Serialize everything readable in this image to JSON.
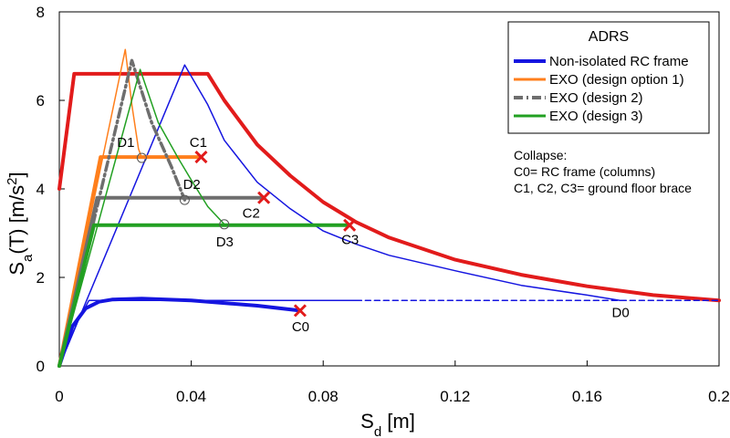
{
  "chart_data": {
    "type": "line",
    "ylabel_main": "S",
    "ylabel_sub": "a",
    "ylabel_rest": "(T)  [m/s",
    "ylabel_sup": "2",
    "ylabel_close": "]",
    "xlabel_main": "S",
    "xlabel_sub": "d",
    "xlabel_rest": " [m]",
    "xlim": [
      0,
      0.2
    ],
    "ylim": [
      0,
      8
    ],
    "xticks": [
      {
        "value": 0,
        "label": "0"
      },
      {
        "value": 0.04,
        "label": "0.04"
      },
      {
        "value": 0.08,
        "label": "0.08"
      },
      {
        "value": 0.12,
        "label": "0.12"
      },
      {
        "value": 0.16,
        "label": "0.16"
      },
      {
        "value": 0.2,
        "label": "0.2"
      }
    ],
    "yticks": [
      {
        "value": 0,
        "label": "0"
      },
      {
        "value": 2,
        "label": "2"
      },
      {
        "value": 4,
        "label": "4"
      },
      {
        "value": 6,
        "label": "6"
      },
      {
        "value": 8,
        "label": "8"
      }
    ],
    "grid": false,
    "legend": {
      "title": "ADRS",
      "placement": "top-right",
      "entries": [
        {
          "label": "Non-isolated RC frame",
          "color": "#1515e0",
          "dash": "solid",
          "width": 4
        },
        {
          "label": "EXO (design option 1)",
          "color": "#ff7f1c",
          "dash": "solid",
          "width": 3
        },
        {
          "label": "EXO (design 2)",
          "color": "#6e6e6e",
          "dash": "dashdot",
          "width": 4
        },
        {
          "label": "EXO (design 3)",
          "color": "#22a022",
          "dash": "solid",
          "width": 3
        }
      ]
    },
    "series": [
      {
        "id": "adrs-spectrum",
        "color": "#e21b1b",
        "width": 4,
        "dash": "solid",
        "points": [
          [
            0,
            4.0
          ],
          [
            0.0045,
            6.6
          ],
          [
            0.045,
            6.6
          ],
          [
            0.05,
            6.0
          ],
          [
            0.06,
            5.0
          ],
          [
            0.07,
            4.3
          ],
          [
            0.08,
            3.7
          ],
          [
            0.09,
            3.25
          ],
          [
            0.1,
            2.9
          ],
          [
            0.12,
            2.4
          ],
          [
            0.14,
            2.06
          ],
          [
            0.16,
            1.8
          ],
          [
            0.18,
            1.6
          ],
          [
            0.2,
            1.48
          ]
        ]
      },
      {
        "id": "demand-spectrum-rc",
        "color": "#1515e0",
        "width": 1.5,
        "dash": "solid",
        "points": [
          [
            0,
            0
          ],
          [
            0.038,
            6.8
          ],
          [
            0.045,
            5.9
          ],
          [
            0.05,
            5.1
          ],
          [
            0.06,
            4.15
          ],
          [
            0.07,
            3.55
          ],
          [
            0.08,
            3.05
          ],
          [
            0.09,
            2.75
          ],
          [
            0.1,
            2.5
          ],
          [
            0.12,
            2.15
          ],
          [
            0.14,
            1.82
          ],
          [
            0.16,
            1.6
          ],
          [
            0.17,
            1.48
          ]
        ]
      },
      {
        "id": "rc-capacity",
        "color": "#1515e0",
        "width": 4,
        "dash": "solid",
        "points": [
          [
            0,
            0
          ],
          [
            0.004,
            0.9
          ],
          [
            0.008,
            1.3
          ],
          [
            0.012,
            1.45
          ],
          [
            0.016,
            1.5
          ],
          [
            0.025,
            1.52
          ],
          [
            0.04,
            1.48
          ],
          [
            0.05,
            1.42
          ],
          [
            0.06,
            1.36
          ],
          [
            0.073,
            1.25
          ]
        ]
      },
      {
        "id": "rc-bilinear",
        "color": "#1515e0",
        "width": 1.5,
        "dash": "solid",
        "points": [
          [
            0,
            0
          ],
          [
            0.0055,
            1.0
          ],
          [
            0.009,
            1.48
          ],
          [
            0.09,
            1.48
          ]
        ]
      },
      {
        "id": "rc-bilinear-ext",
        "color": "#1515e0",
        "width": 1.5,
        "dash": "dashed",
        "points": [
          [
            0.09,
            1.48
          ],
          [
            0.2,
            1.48
          ]
        ]
      },
      {
        "id": "exo1-demand",
        "color": "#ff7f1c",
        "width": 1.5,
        "dash": "solid",
        "points": [
          [
            0,
            0
          ],
          [
            0.02,
            7.15
          ],
          [
            0.022,
            5.9
          ],
          [
            0.024,
            4.9
          ],
          [
            0.025,
            4.7
          ]
        ]
      },
      {
        "id": "exo1-capacity",
        "color": "#ff7f1c",
        "width": 4,
        "dash": "solid",
        "points": [
          [
            0,
            0
          ],
          [
            0.0125,
            4.72
          ],
          [
            0.043,
            4.72
          ]
        ]
      },
      {
        "id": "exo2-demand",
        "color": "#6e6e6e",
        "width": 3.5,
        "dash": "dashdot",
        "points": [
          [
            0,
            0
          ],
          [
            0.022,
            6.9
          ],
          [
            0.028,
            5.5
          ],
          [
            0.034,
            4.5
          ],
          [
            0.038,
            3.75
          ]
        ]
      },
      {
        "id": "exo2-capacity",
        "color": "#6e6e6e",
        "width": 4,
        "dash": "solid",
        "points": [
          [
            0,
            0
          ],
          [
            0.0115,
            3.8
          ],
          [
            0.062,
            3.8
          ]
        ]
      },
      {
        "id": "exo3-demand",
        "color": "#22a022",
        "width": 1.5,
        "dash": "solid",
        "points": [
          [
            0,
            0
          ],
          [
            0.0245,
            6.7
          ],
          [
            0.03,
            5.5
          ],
          [
            0.036,
            4.7
          ],
          [
            0.04,
            4.2
          ],
          [
            0.045,
            3.6
          ],
          [
            0.05,
            3.2
          ]
        ]
      },
      {
        "id": "exo3-capacity",
        "color": "#22a022",
        "width": 4,
        "dash": "solid",
        "points": [
          [
            0,
            0
          ],
          [
            0.0105,
            3.18
          ],
          [
            0.088,
            3.18
          ]
        ]
      }
    ],
    "demand_points": [
      {
        "x": 0.025,
        "y": 4.7
      },
      {
        "x": 0.038,
        "y": 3.75
      },
      {
        "x": 0.05,
        "y": 3.2
      }
    ],
    "collapse_markers": [
      {
        "x": 0.043,
        "y": 4.72
      },
      {
        "x": 0.062,
        "y": 3.8
      },
      {
        "x": 0.088,
        "y": 3.18
      },
      {
        "x": 0.073,
        "y": 1.25
      }
    ],
    "point_labels": [
      {
        "text": "D1",
        "x": 0.0175,
        "y": 4.95
      },
      {
        "text": "C1",
        "x": 0.0395,
        "y": 4.95
      },
      {
        "text": "D2",
        "x": 0.0375,
        "y": 4.0
      },
      {
        "text": "C2",
        "x": 0.0555,
        "y": 3.35
      },
      {
        "text": "D3",
        "x": 0.0475,
        "y": 2.7
      },
      {
        "text": "C3",
        "x": 0.0855,
        "y": 2.75
      },
      {
        "text": "C0",
        "x": 0.0705,
        "y": 0.78
      },
      {
        "text": "D0",
        "x": 0.1675,
        "y": 1.1
      }
    ],
    "annotation": [
      "Collapse:",
      "C0= RC frame (columns)",
      "C1, C2, C3= ground floor brace"
    ],
    "marker_color": "#e21b1b"
  }
}
